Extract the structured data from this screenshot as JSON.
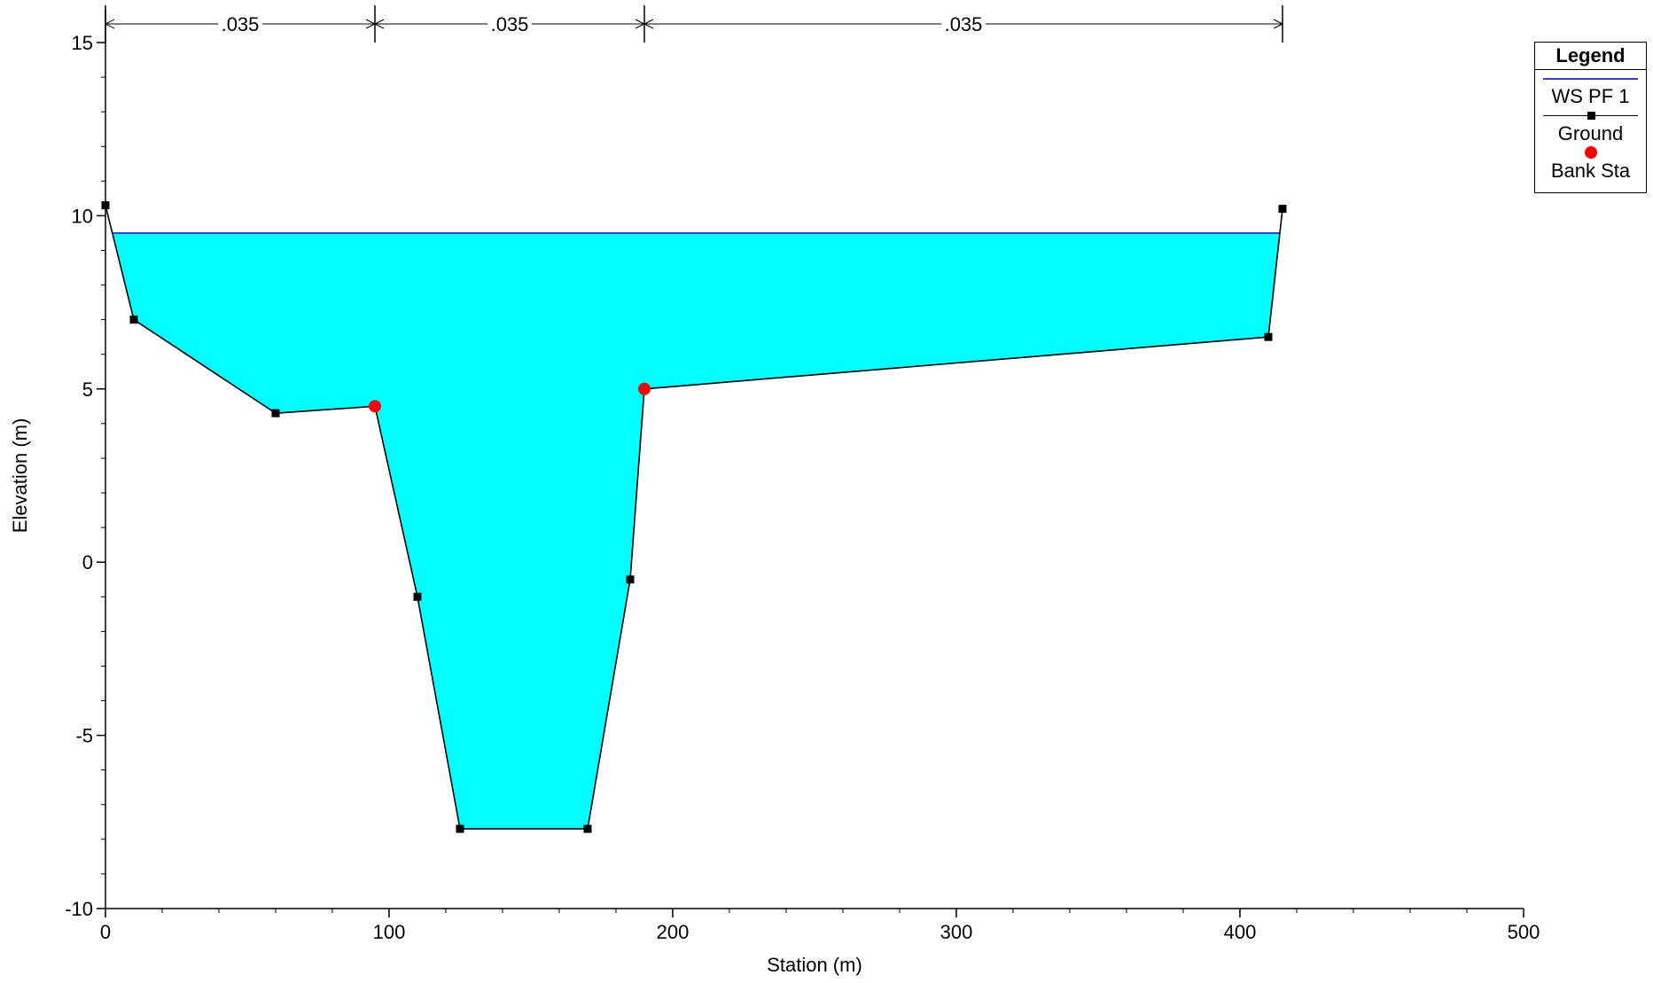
{
  "chart_data": {
    "type": "line",
    "xlabel": "Station (m)",
    "ylabel": "Elevation (m)",
    "xlim": [
      0,
      500
    ],
    "ylim": [
      -10,
      15
    ],
    "x_ticks": [
      0,
      100,
      200,
      300,
      400,
      500
    ],
    "y_ticks": [
      -10,
      -5,
      0,
      5,
      10,
      15
    ],
    "x_tick_labels": [
      "0",
      "100",
      "200",
      "300",
      "400",
      "500"
    ],
    "y_tick_labels": [
      "-10",
      "-5",
      "0",
      "5",
      "10",
      "15"
    ],
    "grid": false,
    "legend_position": "top-right",
    "legend": {
      "title": "Legend",
      "entries": [
        "WS PF 1",
        "Ground",
        "Bank Sta"
      ]
    },
    "series": [
      {
        "name": "Ground",
        "x": [
          0,
          10,
          60,
          95,
          110,
          125,
          170,
          185,
          190,
          410,
          415
        ],
        "y": [
          10.3,
          7.0,
          4.3,
          4.5,
          -1.0,
          -7.7,
          -7.7,
          -0.5,
          5.0,
          6.5,
          10.2
        ],
        "color": "#000000"
      },
      {
        "name": "WS PF 1",
        "elevation": 9.5,
        "color": "#3a3ae6",
        "fill_color": "#00ffff"
      },
      {
        "name": "Bank Sta",
        "x": [
          95,
          190
        ],
        "y": [
          4.5,
          5.0
        ],
        "color": "#ff0000"
      }
    ],
    "mannings_n": [
      {
        "from": 0,
        "to": 95,
        "label": ".035"
      },
      {
        "from": 95,
        "to": 190,
        "label": ".035"
      },
      {
        "from": 190,
        "to": 415,
        "label": ".035"
      }
    ]
  }
}
